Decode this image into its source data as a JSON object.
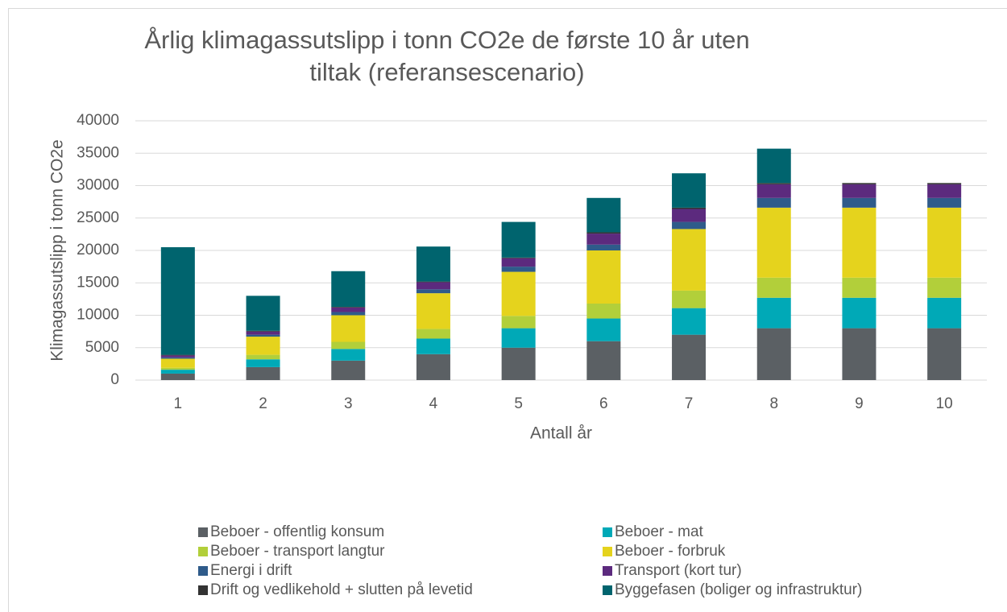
{
  "chart_data": {
    "type": "bar",
    "stacked": true,
    "title": "Årlig klimagassutslipp i tonn CO2e de første 10 år uten tiltak (referansescenario)",
    "x_label": "Antall år",
    "y_label": "Klimagassutslipp i tonn CO2e",
    "categories": [
      "1",
      "2",
      "3",
      "4",
      "5",
      "6",
      "7",
      "8",
      "9",
      "10"
    ],
    "ylim": [
      0,
      40000
    ],
    "yticks": [
      0,
      5000,
      10000,
      15000,
      20000,
      25000,
      30000,
      35000,
      40000
    ],
    "grid": true,
    "legend": "bottom",
    "series": [
      {
        "name": "Beboer - offentlig konsum",
        "color": "#5b6064",
        "values": [
          1000,
          2000,
          3000,
          4000,
          5000,
          6000,
          7000,
          8000,
          8000,
          8000
        ]
      },
      {
        "name": "Beboer - mat",
        "color": "#00a9b7",
        "values": [
          600,
          1200,
          1800,
          2400,
          3000,
          3500,
          4100,
          4700,
          4700,
          4700
        ]
      },
      {
        "name": "Beboer - transport langtur",
        "color": "#b2cf3a",
        "values": [
          300,
          700,
          1100,
          1500,
          1900,
          2300,
          2700,
          3100,
          3100,
          3100
        ]
      },
      {
        "name": "Beboer - forbruk",
        "color": "#e5d31d",
        "values": [
          1400,
          2800,
          4100,
          5500,
          6800,
          8200,
          9500,
          10800,
          10800,
          10800
        ]
      },
      {
        "name": "Energi i drift",
        "color": "#2f5b8a",
        "values": [
          200,
          300,
          500,
          600,
          800,
          900,
          1100,
          1500,
          1500,
          1500
        ]
      },
      {
        "name": "Transport (kort tur)",
        "color": "#5c2a7e",
        "values": [
          300,
          500,
          700,
          1100,
          1300,
          1700,
          2000,
          2100,
          2100,
          2100
        ]
      },
      {
        "name": "Drift og vedlikehold + slutten på levetid",
        "color": "#333333",
        "values": [
          100,
          100,
          100,
          100,
          100,
          200,
          200,
          200,
          200,
          200
        ]
      },
      {
        "name": "Byggefasen (boliger og infrastruktur)",
        "color": "#00646e",
        "values": [
          16600,
          5400,
          5500,
          5400,
          5500,
          5300,
          5300,
          5300,
          0,
          0
        ]
      }
    ]
  }
}
